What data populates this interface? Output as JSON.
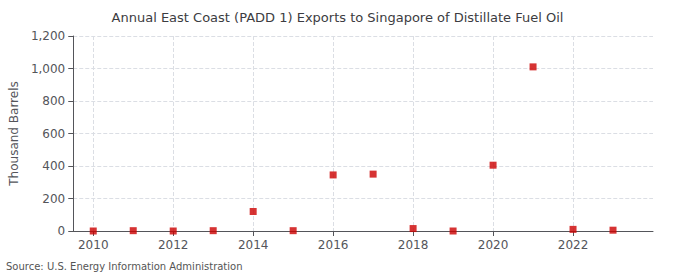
{
  "chart_data": {
    "type": "scatter",
    "title": "Annual East Coast (PADD 1) Exports to Singapore of Distillate Fuel Oil",
    "ylabel": "Thousand Barrels",
    "annotations": [
      "Source: U.S. Energy Information Administration"
    ],
    "x": [
      2010,
      2011,
      2012,
      2013,
      2014,
      2015,
      2016,
      2017,
      2018,
      2019,
      2020,
      2021,
      2022,
      2023
    ],
    "values": [
      0,
      2,
      0,
      2,
      120,
      2,
      345,
      350,
      15,
      0,
      405,
      1010,
      10,
      5
    ],
    "color": "#cc0000",
    "marker": "square",
    "xlim": [
      2009.5,
      2024.0
    ],
    "xticks": [
      2010,
      2012,
      2014,
      2016,
      2018,
      2020,
      2022
    ],
    "ylim": [
      0,
      1200
    ],
    "yticks": [
      0,
      200,
      400,
      600,
      {
        "value": 1000,
        "label": "1,000"
      },
      {
        "value": 1200,
        "label": "1,200"
      },
      800
    ],
    "grid": true
  }
}
